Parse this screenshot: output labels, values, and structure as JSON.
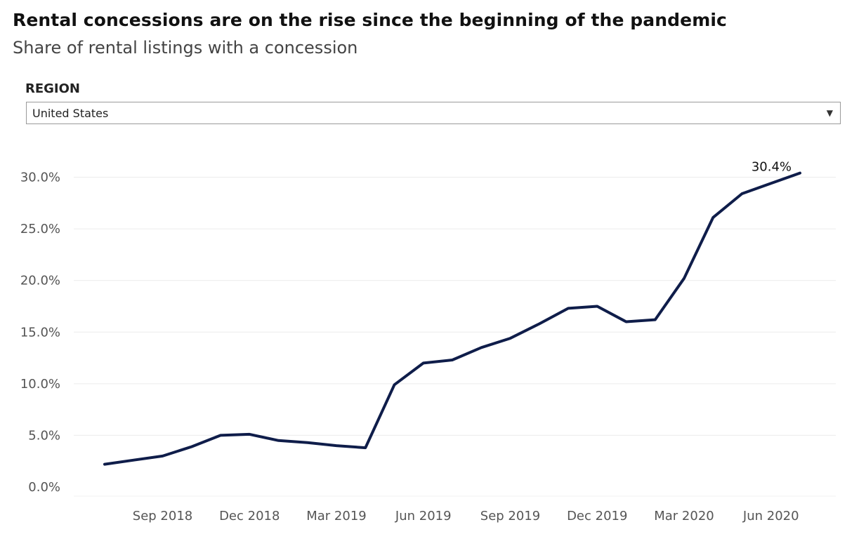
{
  "header": {
    "title": "Rental concessions are on the rise since the beginning of the pandemic",
    "subtitle": "Share of rental listings with a concession"
  },
  "filter": {
    "label": "REGION",
    "selected": "United States",
    "caret_icon": "chevron-down-icon"
  },
  "colors": {
    "line": "#0f1d4a",
    "grid": "#ececec"
  },
  "chart_data": {
    "type": "line",
    "title": "Rental concessions are on the rise since the beginning of the pandemic",
    "subtitle": "Share of rental listings with a concession",
    "xlabel": "",
    "ylabel": "",
    "ylim": [
      0,
      30
    ],
    "y_ticks": [
      0,
      5,
      10,
      15,
      20,
      25,
      30
    ],
    "y_tick_labels": [
      "0.0%",
      "5.0%",
      "10.0%",
      "15.0%",
      "20.0%",
      "25.0%",
      "30.0%"
    ],
    "x_ticks": [
      "2018-09",
      "2018-12",
      "2019-03",
      "2019-06",
      "2019-09",
      "2019-12",
      "2020-03",
      "2020-06"
    ],
    "x_tick_labels": [
      "Sep 2018",
      "Dec 2018",
      "Mar 2019",
      "Jun 2019",
      "Sep 2019",
      "Dec 2019",
      "Mar 2020",
      "Jun 2020"
    ],
    "grid": true,
    "series": [
      {
        "x": [
          "2018-07",
          "2018-08",
          "2018-09",
          "2018-10",
          "2018-11",
          "2018-12",
          "2019-01",
          "2019-02",
          "2019-03",
          "2019-04",
          "2019-05",
          "2019-06",
          "2019-07",
          "2019-08",
          "2019-09",
          "2019-10",
          "2019-11",
          "2019-12",
          "2020-01",
          "2020-02",
          "2020-03",
          "2020-04",
          "2020-05",
          "2020-06",
          "2020-07"
        ],
        "values": [
          2.2,
          2.6,
          3.0,
          3.9,
          5.0,
          5.1,
          4.5,
          4.3,
          4.0,
          3.8,
          9.9,
          12.0,
          12.3,
          13.5,
          14.4,
          15.8,
          17.3,
          17.5,
          16.0,
          16.2,
          20.2,
          26.1,
          28.4,
          29.4,
          30.4
        ]
      }
    ],
    "annotations": [
      {
        "x": "2020-07",
        "text": "30.4%"
      }
    ]
  }
}
